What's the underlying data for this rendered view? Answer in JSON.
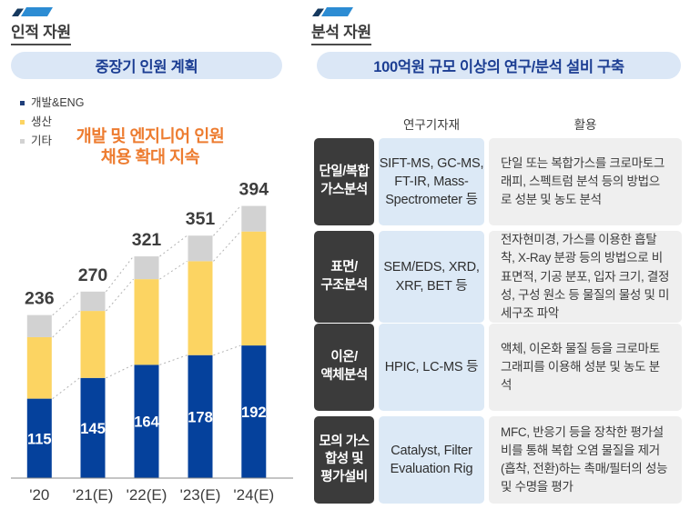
{
  "colors": {
    "accent_blue": "#2C8CD3",
    "accent_navy": "#16395F",
    "pill_bg": "#DBE7F6",
    "pill_text": "#1C3E93",
    "annotation_orange": "#ED7C30",
    "bar_blue": "#05419C",
    "bar_yellow": "#FCD462",
    "bar_gray": "#D2D2D2",
    "table_category_bg": "#3B3B3B",
    "table_equipment_bg": "#DCE9F6",
    "table_usage_bg": "#EFEFEF",
    "axis_line": "#8A8A8A",
    "connector_line": "#B3B3B3",
    "text_dark": "#3B3B3B"
  },
  "left_section": {
    "title": "인적 자원",
    "banner": "중장기 인원 계획",
    "legend": [
      {
        "label": "개발&ENG",
        "color": "#1F3F7A"
      },
      {
        "label": "생산",
        "color": "#FCD462"
      },
      {
        "label": "기타",
        "color": "#D2D2D2"
      }
    ],
    "annotation": "개발 및 엔지니어 인원\n채용 확대 지속",
    "chart_data": {
      "type": "bar",
      "stacked": true,
      "title": "중장기 인원 계획",
      "categories": [
        "'20",
        "'21(E)",
        "'22(E)",
        "'23(E)",
        "'24(E)"
      ],
      "series": [
        {
          "name": "개발&ENG",
          "color": "#05419C",
          "values": [
            115,
            145,
            164,
            178,
            192
          ],
          "labels_visible": true
        },
        {
          "name": "생산",
          "color": "#FCD462",
          "values": [
            89,
            97,
            124,
            136,
            165
          ],
          "estimated": true
        },
        {
          "name": "기타",
          "color": "#D2D2D2",
          "values": [
            32,
            28,
            33,
            37,
            37
          ],
          "estimated": true
        }
      ],
      "totals": [
        236,
        270,
        321,
        351,
        394
      ],
      "ylim": [
        0,
        440
      ],
      "grid": false,
      "legend_position": "top-left",
      "connectors": "dotted lines linking each segment top between adjacent bars"
    }
  },
  "right_section": {
    "title": "분석 자원",
    "banner": "100억원 규모 이상의 연구/분석 설비 구축",
    "table": {
      "col_headers": [
        "연구기자재",
        "활용"
      ],
      "rows": [
        {
          "category": "단일/복합\n가스분석",
          "equipment": "SIFT-MS, GC-MS,\nFT-IR, Mass-\nSpectrometer 등",
          "usage": "단일 또는 복합가스를 크로마토그래피, 스펙트럼 분석 등의 방법으로 성분 및 농도 분석"
        },
        {
          "category": "표면/\n구조분석",
          "equipment": "SEM/EDS, XRD,\nXRF, BET 등",
          "usage": "전자현미경, 가스를 이용한 흡탈착, X-Ray 분광 등의 방법으로 비표면적, 기공 분포, 입자 크기, 결정성, 구성 원소 등 물질의 물성 및 미세구조 파악"
        },
        {
          "category": "이온/\n액체분석",
          "equipment": "HPIC, LC-MS 등",
          "usage": "액체, 이온화 물질 등을 크로마토그래피를 이용해 성분 및 농도 분석"
        },
        {
          "category": "모의 가스\n합성 및\n평가설비",
          "equipment": "Catalyst, Filter\nEvaluation Rig",
          "usage": "MFC, 반응기 등을 장착한 평가설비를 통해 복합 오염 물질을 제거(흡착, 전환)하는 촉매/필터의 성능 및 수명을 평가"
        }
      ]
    }
  }
}
